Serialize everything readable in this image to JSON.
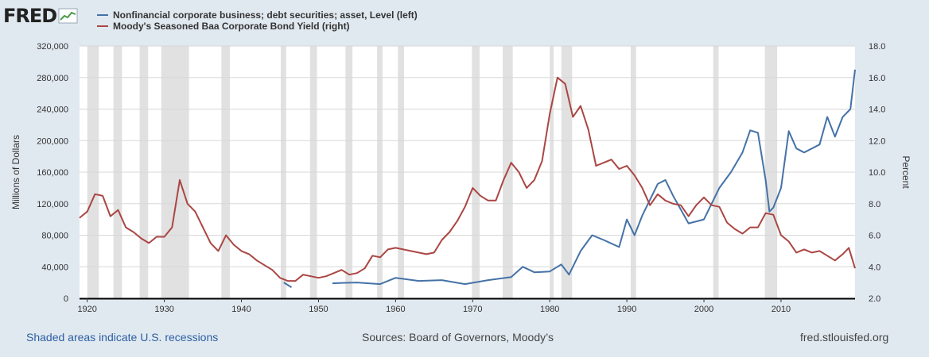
{
  "logo": {
    "text": "FRED",
    "icon": "line-chart-icon"
  },
  "footer": {
    "recession_note": "Shaded areas indicate U.S. recessions",
    "sources": "Sources: Board of Governors, Moody’s",
    "site": "fred.stlouisfed.org"
  },
  "chart_data": {
    "type": "line",
    "left_axis": {
      "title": "Millions of Dollars",
      "min": 0,
      "max": 320000,
      "ticks": [
        "0",
        "40,000",
        "80,000",
        "120,000",
        "160,000",
        "200,000",
        "240,000",
        "280,000",
        "320,000"
      ]
    },
    "right_axis": {
      "title": "Percent",
      "min": 2.0,
      "max": 18.0,
      "ticks": [
        "2.0",
        "4.0",
        "6.0",
        "8.0",
        "10.0",
        "12.0",
        "14.0",
        "16.0",
        "18.0"
      ]
    },
    "x_axis": {
      "min": 1919,
      "max": 2019.6,
      "ticks": [
        "1920",
        "1930",
        "1940",
        "1950",
        "1960",
        "1970",
        "1980",
        "1990",
        "2000",
        "2010"
      ]
    },
    "grid": true,
    "legend_position": "top-left",
    "recessions": [
      [
        1920.0,
        1921.5
      ],
      [
        1923.4,
        1924.5
      ],
      [
        1926.8,
        1927.9
      ],
      [
        1929.6,
        1933.2
      ],
      [
        1937.4,
        1938.5
      ],
      [
        1945.1,
        1945.8
      ],
      [
        1948.9,
        1949.8
      ],
      [
        1953.5,
        1954.4
      ],
      [
        1957.6,
        1958.3
      ],
      [
        1960.3,
        1961.1
      ],
      [
        1969.9,
        1970.9
      ],
      [
        1973.9,
        1975.2
      ],
      [
        1980.0,
        1980.5
      ],
      [
        1981.5,
        1982.9
      ],
      [
        1990.5,
        1991.2
      ],
      [
        2001.2,
        2001.9
      ],
      [
        2007.9,
        2009.5
      ]
    ],
    "series": [
      {
        "name": "Nonfinancial corporate business; debt securities; asset, Level (left)",
        "color": "#4572a7",
        "axis": "left",
        "points": [
          [
            1945.5,
            20000
          ],
          [
            1946.5,
            14000
          ],
          [
            1951.8,
            19000
          ],
          [
            1953,
            19500
          ],
          [
            1955,
            20000
          ],
          [
            1958,
            18000
          ],
          [
            1960,
            26000
          ],
          [
            1963,
            22000
          ],
          [
            1966,
            23000
          ],
          [
            1969,
            18000
          ],
          [
            1972,
            23000
          ],
          [
            1975,
            27000
          ],
          [
            1976.5,
            40000
          ],
          [
            1978,
            33000
          ],
          [
            1980,
            34000
          ],
          [
            1981.5,
            43000
          ],
          [
            1982.5,
            30000
          ],
          [
            1984,
            60000
          ],
          [
            1985.5,
            80000
          ],
          [
            1987,
            74000
          ],
          [
            1989,
            65000
          ],
          [
            1990,
            100000
          ],
          [
            1991,
            80000
          ],
          [
            1992,
            105000
          ],
          [
            1994,
            145000
          ],
          [
            1995,
            150000
          ],
          [
            1996,
            130000
          ],
          [
            1998,
            95000
          ],
          [
            2000,
            100000
          ],
          [
            2002,
            140000
          ],
          [
            2003.5,
            160000
          ],
          [
            2005,
            185000
          ],
          [
            2006,
            213000
          ],
          [
            2007,
            210000
          ],
          [
            2008,
            150000
          ],
          [
            2008.5,
            110000
          ],
          [
            2009,
            115000
          ],
          [
            2010,
            140000
          ],
          [
            2011,
            212000
          ],
          [
            2012,
            190000
          ],
          [
            2013,
            185000
          ],
          [
            2015,
            195000
          ],
          [
            2016,
            230000
          ],
          [
            2017,
            205000
          ],
          [
            2018,
            230000
          ],
          [
            2019,
            240000
          ],
          [
            2019.6,
            290000
          ]
        ]
      },
      {
        "name": "Moody's Seasoned Baa Corporate Bond Yield (right)",
        "color": "#aa4643",
        "axis": "right",
        "points": [
          [
            1919,
            7.1
          ],
          [
            1920,
            7.5
          ],
          [
            1921,
            8.6
          ],
          [
            1922,
            8.5
          ],
          [
            1923,
            7.2
          ],
          [
            1924,
            7.6
          ],
          [
            1925,
            6.5
          ],
          [
            1926,
            6.2
          ],
          [
            1927,
            5.8
          ],
          [
            1928,
            5.5
          ],
          [
            1929,
            5.9
          ],
          [
            1930,
            5.9
          ],
          [
            1931,
            6.5
          ],
          [
            1932,
            9.5
          ],
          [
            1933,
            8.0
          ],
          [
            1934,
            7.5
          ],
          [
            1935,
            6.5
          ],
          [
            1936,
            5.5
          ],
          [
            1937,
            5.0
          ],
          [
            1938,
            6.0
          ],
          [
            1939,
            5.4
          ],
          [
            1940,
            5.0
          ],
          [
            1941,
            4.8
          ],
          [
            1942,
            4.4
          ],
          [
            1943,
            4.1
          ],
          [
            1944,
            3.8
          ],
          [
            1945,
            3.3
          ],
          [
            1946,
            3.1
          ],
          [
            1947,
            3.1
          ],
          [
            1948,
            3.5
          ],
          [
            1949,
            3.4
          ],
          [
            1950,
            3.3
          ],
          [
            1951,
            3.4
          ],
          [
            1952,
            3.6
          ],
          [
            1953,
            3.8
          ],
          [
            1954,
            3.5
          ],
          [
            1955,
            3.6
          ],
          [
            1956,
            3.9
          ],
          [
            1957,
            4.7
          ],
          [
            1958,
            4.6
          ],
          [
            1959,
            5.1
          ],
          [
            1960,
            5.2
          ],
          [
            1961,
            5.1
          ],
          [
            1962,
            5.0
          ],
          [
            1963,
            4.9
          ],
          [
            1964,
            4.8
          ],
          [
            1965,
            4.9
          ],
          [
            1966,
            5.7
          ],
          [
            1967,
            6.2
          ],
          [
            1968,
            6.9
          ],
          [
            1969,
            7.8
          ],
          [
            1970,
            9.0
          ],
          [
            1971,
            8.5
          ],
          [
            1972,
            8.2
          ],
          [
            1973,
            8.2
          ],
          [
            1974,
            9.5
          ],
          [
            1975,
            10.6
          ],
          [
            1976,
            10.0
          ],
          [
            1977,
            9.0
          ],
          [
            1978,
            9.5
          ],
          [
            1979,
            10.7
          ],
          [
            1980,
            13.7
          ],
          [
            1981,
            16.0
          ],
          [
            1982,
            15.6
          ],
          [
            1983,
            13.5
          ],
          [
            1984,
            14.2
          ],
          [
            1985,
            12.7
          ],
          [
            1986,
            10.4
          ],
          [
            1987,
            10.6
          ],
          [
            1988,
            10.8
          ],
          [
            1989,
            10.2
          ],
          [
            1990,
            10.4
          ],
          [
            1991,
            9.8
          ],
          [
            1992,
            9.0
          ],
          [
            1993,
            7.9
          ],
          [
            1994,
            8.6
          ],
          [
            1995,
            8.2
          ],
          [
            1996,
            8.0
          ],
          [
            1997,
            7.9
          ],
          [
            1998,
            7.2
          ],
          [
            1999,
            7.9
          ],
          [
            2000,
            8.4
          ],
          [
            2001,
            7.9
          ],
          [
            2002,
            7.8
          ],
          [
            2003,
            6.8
          ],
          [
            2004,
            6.4
          ],
          [
            2005,
            6.1
          ],
          [
            2006,
            6.5
          ],
          [
            2007,
            6.5
          ],
          [
            2008,
            7.4
          ],
          [
            2009,
            7.3
          ],
          [
            2010,
            6.0
          ],
          [
            2011,
            5.6
          ],
          [
            2012,
            4.9
          ],
          [
            2013,
            5.1
          ],
          [
            2014,
            4.9
          ],
          [
            2015,
            5.0
          ],
          [
            2016,
            4.7
          ],
          [
            2017,
            4.4
          ],
          [
            2018,
            4.8
          ],
          [
            2018.8,
            5.2
          ],
          [
            2019.6,
            3.9
          ]
        ]
      }
    ]
  }
}
